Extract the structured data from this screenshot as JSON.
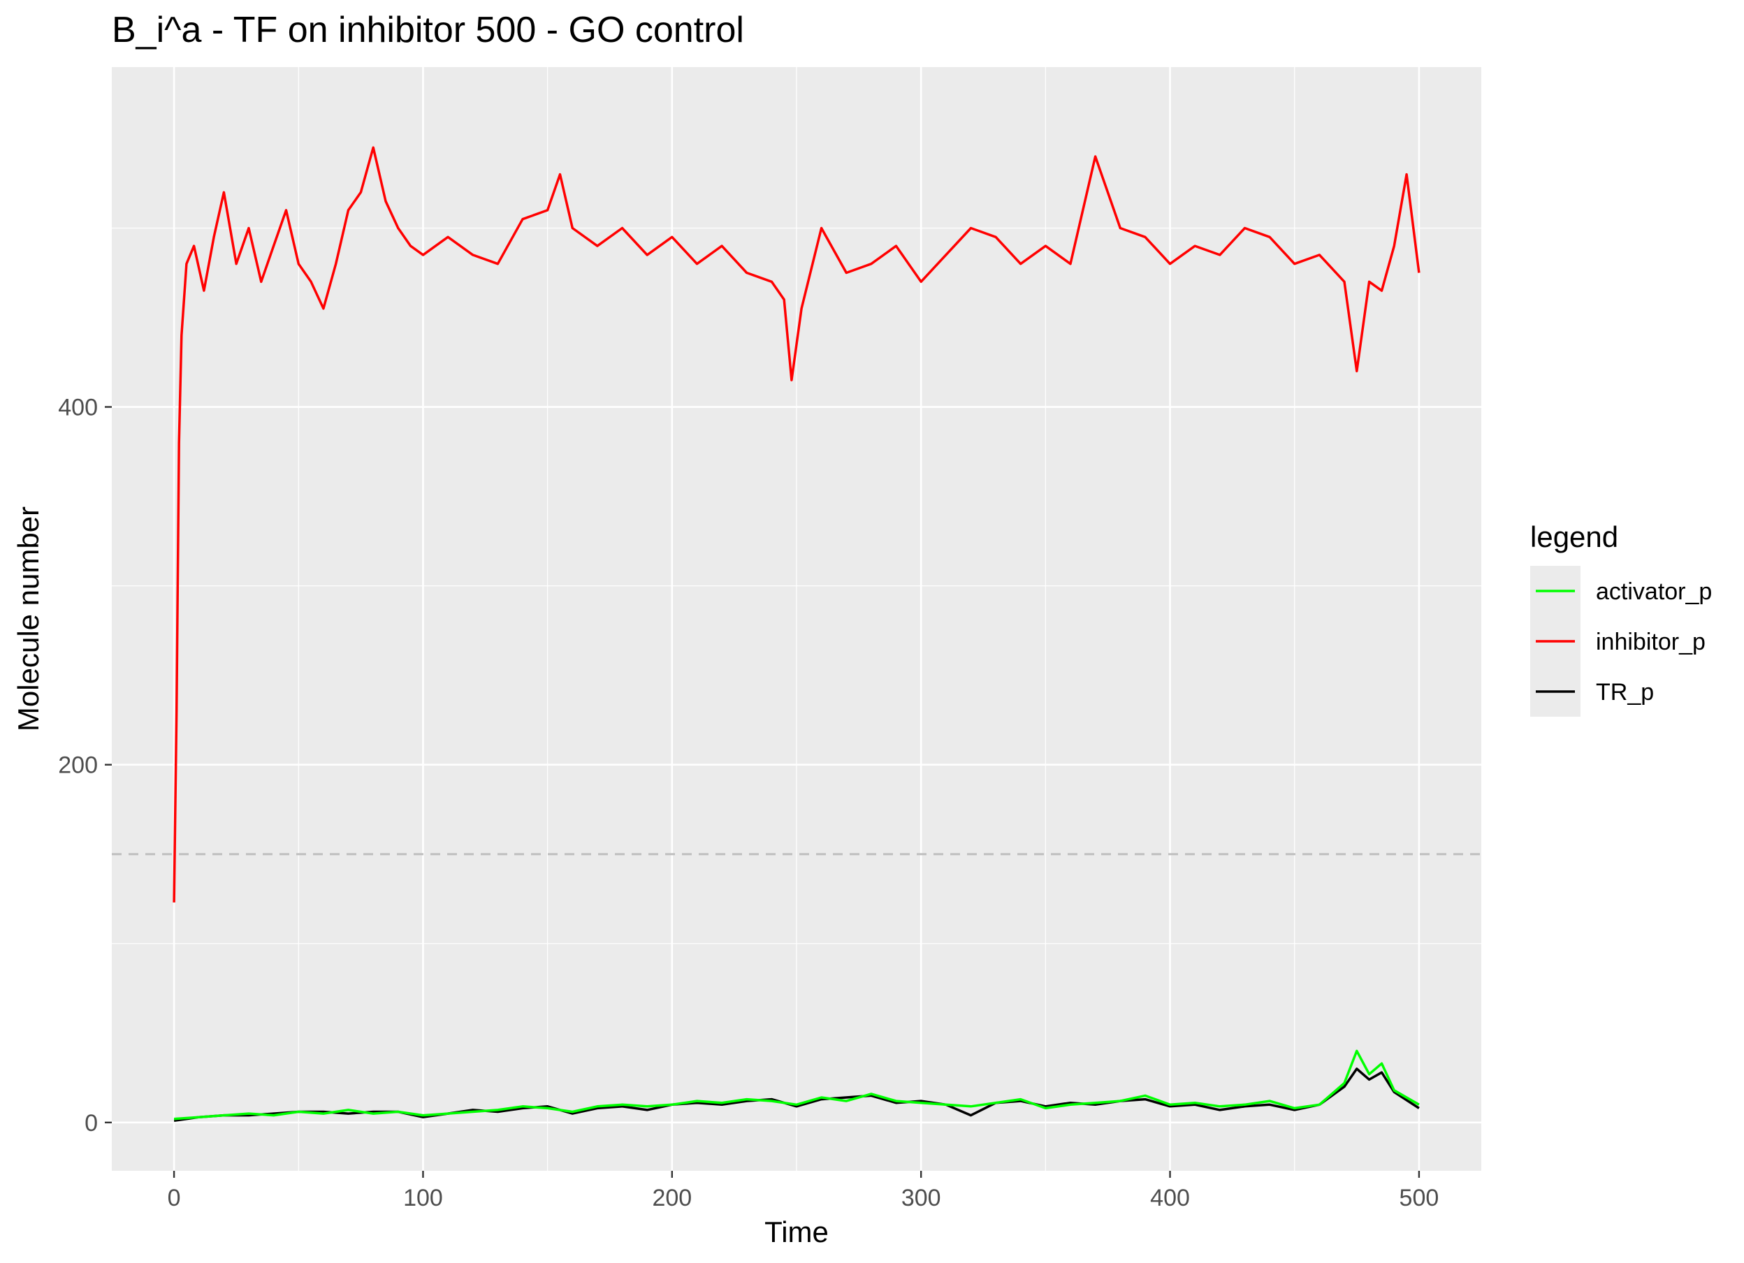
{
  "chart_data": {
    "type": "line",
    "title": "B_i^a - TF on inhibitor 500 - GO control",
    "xlabel": "Time",
    "ylabel": "Molecule number",
    "xlim": [
      -25,
      525
    ],
    "ylim": [
      -27,
      590
    ],
    "x_ticks": [
      0,
      100,
      200,
      300,
      400,
      500
    ],
    "y_ticks": [
      0,
      200,
      400
    ],
    "x_tick_labels": [
      "0",
      "100",
      "200",
      "300",
      "400",
      "500"
    ],
    "y_tick_labels": [
      "0",
      "200",
      "400"
    ],
    "grid": true,
    "background": "#ebebeb",
    "reference_line": {
      "y": 150,
      "style": "dashed",
      "color": "#bfbfbf"
    },
    "legend": {
      "title": "legend",
      "placement": "right"
    },
    "series": [
      {
        "name": "activator_p",
        "color": "#00ff00",
        "x": [
          0,
          10,
          20,
          30,
          40,
          50,
          60,
          70,
          80,
          90,
          100,
          110,
          120,
          130,
          140,
          150,
          160,
          170,
          180,
          190,
          200,
          210,
          220,
          230,
          240,
          250,
          260,
          270,
          280,
          290,
          300,
          310,
          320,
          330,
          340,
          350,
          360,
          370,
          380,
          390,
          400,
          410,
          420,
          430,
          440,
          450,
          460,
          470,
          475,
          480,
          485,
          490,
          500
        ],
        "y": [
          2,
          3,
          4,
          5,
          4,
          6,
          5,
          7,
          5,
          6,
          4,
          5,
          6,
          7,
          9,
          8,
          6,
          9,
          10,
          9,
          10,
          12,
          11,
          13,
          12,
          10,
          14,
          12,
          16,
          12,
          11,
          10,
          9,
          11,
          13,
          8,
          10,
          11,
          12,
          15,
          10,
          11,
          9,
          10,
          12,
          8,
          10,
          22,
          40,
          27,
          33,
          18,
          10
        ]
      },
      {
        "name": "inhibitor_p",
        "color": "#ff0000",
        "x": [
          0,
          1,
          2,
          3,
          5,
          8,
          12,
          16,
          20,
          25,
          30,
          35,
          40,
          45,
          50,
          55,
          60,
          65,
          70,
          75,
          80,
          85,
          90,
          95,
          100,
          110,
          120,
          130,
          140,
          150,
          155,
          160,
          170,
          180,
          190,
          200,
          210,
          220,
          230,
          240,
          245,
          248,
          252,
          260,
          270,
          280,
          290,
          300,
          310,
          320,
          330,
          340,
          350,
          360,
          370,
          380,
          390,
          400,
          410,
          420,
          430,
          440,
          450,
          460,
          470,
          475,
          480,
          485,
          490,
          495,
          500
        ],
        "y": [
          123,
          230,
          380,
          440,
          480,
          490,
          465,
          495,
          520,
          480,
          500,
          470,
          490,
          510,
          480,
          470,
          455,
          480,
          510,
          520,
          545,
          515,
          500,
          490,
          485,
          495,
          485,
          480,
          505,
          510,
          530,
          500,
          490,
          500,
          485,
          495,
          480,
          490,
          475,
          470,
          460,
          415,
          455,
          500,
          475,
          480,
          490,
          470,
          485,
          500,
          495,
          480,
          490,
          480,
          540,
          500,
          495,
          480,
          490,
          485,
          500,
          495,
          480,
          485,
          470,
          420,
          470,
          465,
          490,
          530,
          475
        ]
      },
      {
        "name": "TR_p",
        "color": "#000000",
        "x": [
          0,
          10,
          20,
          30,
          40,
          50,
          60,
          70,
          80,
          90,
          100,
          110,
          120,
          130,
          140,
          150,
          160,
          170,
          180,
          190,
          200,
          210,
          220,
          230,
          240,
          250,
          260,
          270,
          280,
          290,
          300,
          310,
          320,
          330,
          340,
          350,
          360,
          370,
          380,
          390,
          400,
          410,
          420,
          430,
          440,
          450,
          460,
          470,
          475,
          480,
          485,
          490,
          500
        ],
        "y": [
          1,
          3,
          4,
          4,
          5,
          6,
          6,
          5,
          6,
          6,
          3,
          5,
          7,
          6,
          8,
          9,
          5,
          8,
          9,
          7,
          10,
          11,
          10,
          12,
          13,
          9,
          13,
          14,
          15,
          11,
          12,
          10,
          4,
          11,
          12,
          9,
          11,
          10,
          12,
          13,
          9,
          10,
          7,
          9,
          10,
          7,
          10,
          20,
          30,
          24,
          28,
          17,
          8
        ]
      }
    ]
  }
}
